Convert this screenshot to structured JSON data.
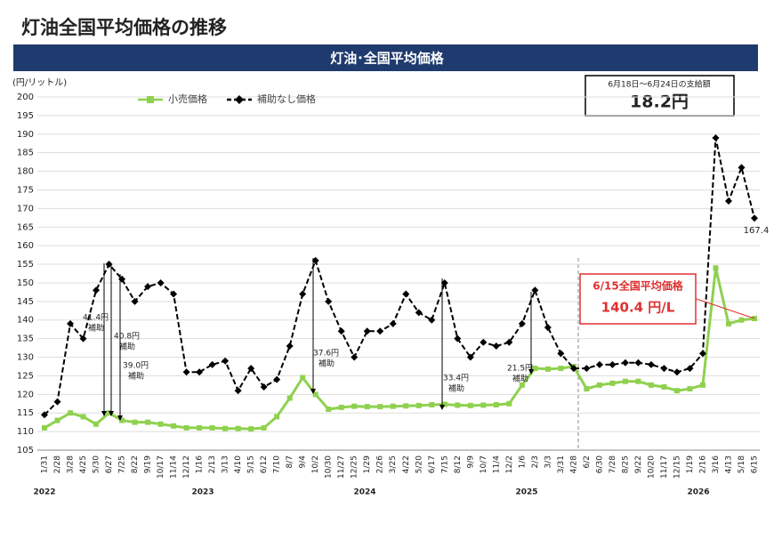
{
  "chart_data": {
    "type": "line",
    "title": "灯油全国平均価格の推移",
    "subtitle": "灯油･全国平均価格",
    "y_label": "(円/リットル)",
    "categories": [
      "1/31",
      "2/28",
      "3/28",
      "4/25",
      "5/30",
      "6/27",
      "7/25",
      "8/22",
      "9/19",
      "10/17",
      "11/14",
      "12/12",
      "1/16",
      "2/13",
      "3/13",
      "4/10",
      "5/15",
      "6/12",
      "7/10",
      "8/7",
      "9/4",
      "10/2",
      "10/30",
      "11/27",
      "12/25",
      "1/29",
      "2/26",
      "3/25",
      "4/22",
      "5/20",
      "6/17",
      "7/15",
      "8/12",
      "9/9",
      "10/7",
      "11/4",
      "12/2",
      "1/6",
      "2/3",
      "3/3",
      "3/31",
      "4/28",
      "6/2",
      "6/30",
      "7/28",
      "8/25",
      "9/22",
      "10/20",
      "11/17",
      "12/15",
      "1/19",
      "2/16",
      "3/16",
      "4/13",
      "5/18",
      "6/15"
    ],
    "years": [
      "2022",
      "2023",
      "2024",
      "2025",
      "2026"
    ],
    "series": [
      {
        "name": "小売価格",
        "color": "#8fd14f",
        "values": [
          111,
          113,
          115,
          114,
          112,
          115,
          113,
          112.5,
          112.5,
          112,
          111.5,
          111,
          111,
          111,
          110.8,
          110.8,
          110.7,
          111,
          114,
          119,
          124.5,
          120,
          116,
          116.5,
          116.8,
          116.7,
          116.7,
          116.8,
          116.9,
          117,
          117.2,
          117.3,
          117.1,
          117,
          117.1,
          117.2,
          117.5,
          122.5,
          127,
          126.8,
          127,
          127.5,
          121.5,
          122.5,
          123,
          123.5,
          123.5,
          122.5,
          122,
          121,
          121.5,
          122.5,
          154,
          139,
          140,
          140.4
        ]
      },
      {
        "name": "補助なし価格",
        "color": "#000000",
        "values": [
          114.5,
          118,
          139,
          135,
          148,
          155,
          151,
          145,
          149,
          150,
          147,
          126,
          126,
          128,
          129,
          121,
          127,
          122,
          124,
          133,
          147,
          156,
          145,
          137,
          130,
          137,
          137,
          139,
          147,
          142,
          140,
          150,
          135,
          130,
          134,
          133,
          134,
          139,
          148,
          138,
          131,
          127,
          127,
          128,
          128,
          128.5,
          128.5,
          128,
          127,
          126,
          127,
          131,
          189,
          172,
          181,
          167.4
        ]
      }
    ],
    "ylim": [
      105,
      200
    ],
    "yticks": [
      105,
      110,
      115,
      120,
      125,
      130,
      135,
      140,
      145,
      150,
      155,
      160,
      165,
      170,
      175,
      180,
      185,
      190,
      195,
      200
    ],
    "grid": true,
    "legend": "top",
    "annotations": [
      {
        "amount": "41.4円",
        "note": "補助"
      },
      {
        "amount": "40.8円",
        "note": "補助"
      },
      {
        "amount": "39.0円",
        "note": "補助"
      },
      {
        "amount": "37.6円",
        "note": "補助"
      },
      {
        "amount": "33.4円",
        "note": "補助"
      },
      {
        "amount": "21.5円",
        "note": "補助"
      }
    ],
    "subsidy_box": {
      "period": "6月18日～6月24日の支給額",
      "amount": "18.2円"
    },
    "price_box": {
      "title": "6/15全国平均価格",
      "amount": "140.4 円/L"
    }
  }
}
